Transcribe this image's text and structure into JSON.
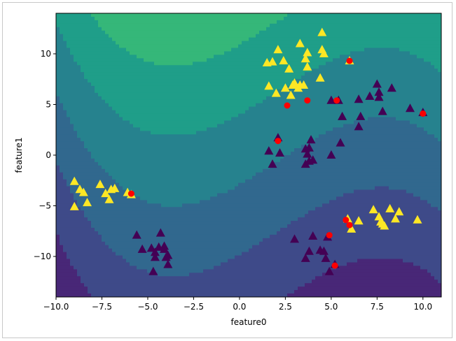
{
  "chart_data": {
    "type": "scatter",
    "title": "",
    "xlabel": "feature0",
    "ylabel": "feature1",
    "xlim": [
      -10.0,
      11.0
    ],
    "ylim": [
      -14.0,
      14.0
    ],
    "xticks": [
      -10.0,
      -7.5,
      -5.0,
      -2.5,
      0.0,
      2.5,
      5.0,
      7.5,
      10.0
    ],
    "xtick_labels": [
      "−10.0",
      "−7.5",
      "−5.0",
      "−2.5",
      "0.0",
      "2.5",
      "5.0",
      "7.5",
      "10.0"
    ],
    "yticks": [
      -10,
      -5,
      0,
      5,
      10
    ],
    "ytick_labels": [
      "−10",
      "−5",
      "0",
      "5",
      "10"
    ],
    "grid": false,
    "background": "decision-function contour (viridis)",
    "colors": {
      "class0": "#440154",
      "class1": "#fde725",
      "support_vector": "#ff0000",
      "contour_levels": [
        "#482777",
        "#3e4a89",
        "#31688e",
        "#26828e",
        "#1f9e89",
        "#35b779",
        "#6ece58",
        "#b5de2b",
        "#fde725"
      ]
    },
    "series": [
      {
        "class": 0,
        "marker": "triangle",
        "points": [
          [
            -5.6,
            -7.9
          ],
          [
            -5.3,
            -9.3
          ],
          [
            -4.8,
            -9.2
          ],
          [
            -4.6,
            -9.6
          ],
          [
            -4.6,
            -10.1
          ],
          [
            -4.3,
            -7.7
          ],
          [
            -4.4,
            -9.1
          ],
          [
            -4.1,
            -9.3
          ],
          [
            -4.0,
            -10.1
          ],
          [
            -3.9,
            -9.9
          ],
          [
            -3.9,
            -10.8
          ],
          [
            -4.7,
            -11.5
          ],
          [
            -4.1,
            -9.0
          ],
          [
            1.6,
            0.4
          ],
          [
            1.8,
            -0.9
          ],
          [
            2.1,
            1.7
          ],
          [
            2.2,
            0.2
          ],
          [
            3.6,
            0.6
          ],
          [
            3.6,
            -0.9
          ],
          [
            3.7,
            0.1
          ],
          [
            3.8,
            0.7
          ],
          [
            3.8,
            -0.6
          ],
          [
            3.9,
            1.5
          ],
          [
            4.0,
            -0.5
          ],
          [
            5.0,
            0.0
          ],
          [
            5.5,
            1.2
          ],
          [
            5.0,
            5.4
          ],
          [
            5.4,
            5.4
          ],
          [
            5.6,
            3.8
          ],
          [
            6.5,
            5.5
          ],
          [
            6.5,
            2.8
          ],
          [
            6.6,
            3.8
          ],
          [
            7.1,
            5.8
          ],
          [
            7.5,
            7.0
          ],
          [
            7.6,
            6.2
          ],
          [
            7.6,
            5.7
          ],
          [
            7.8,
            4.3
          ],
          [
            8.3,
            6.6
          ],
          [
            9.3,
            4.6
          ],
          [
            10.0,
            4.2
          ],
          [
            3.0,
            -8.3
          ],
          [
            3.6,
            -10.2
          ],
          [
            3.8,
            -9.5
          ],
          [
            4.0,
            -8.0
          ],
          [
            4.4,
            -9.4
          ],
          [
            4.6,
            -9.5
          ],
          [
            4.7,
            -10.2
          ],
          [
            4.8,
            -8.1
          ],
          [
            4.9,
            -11.5
          ],
          [
            5.2,
            -10.8
          ]
        ]
      },
      {
        "class": 1,
        "marker": "triangle",
        "points": [
          [
            -9.0,
            -2.6
          ],
          [
            -8.7,
            -3.4
          ],
          [
            -8.5,
            -3.7
          ],
          [
            -9.0,
            -5.1
          ],
          [
            -8.3,
            -4.7
          ],
          [
            -7.6,
            -2.9
          ],
          [
            -7.3,
            -3.8
          ],
          [
            -7.1,
            -4.4
          ],
          [
            -7.0,
            -3.4
          ],
          [
            -6.8,
            -3.3
          ],
          [
            -6.1,
            -3.7
          ],
          [
            -5.9,
            -3.9
          ],
          [
            1.5,
            9.1
          ],
          [
            1.6,
            6.8
          ],
          [
            1.8,
            9.2
          ],
          [
            2.0,
            6.1
          ],
          [
            2.1,
            10.4
          ],
          [
            2.4,
            9.3
          ],
          [
            2.5,
            6.6
          ],
          [
            2.7,
            8.5
          ],
          [
            2.8,
            5.9
          ],
          [
            2.9,
            6.9
          ],
          [
            3.0,
            7.1
          ],
          [
            3.2,
            6.6
          ],
          [
            3.3,
            11.0
          ],
          [
            3.3,
            6.9
          ],
          [
            3.5,
            6.9
          ],
          [
            3.6,
            9.5
          ],
          [
            3.7,
            8.7
          ],
          [
            3.7,
            10.1
          ],
          [
            4.4,
            7.6
          ],
          [
            4.5,
            10.4
          ],
          [
            4.5,
            12.1
          ],
          [
            4.6,
            10.0
          ],
          [
            6.0,
            9.3
          ],
          [
            5.9,
            -6.3
          ],
          [
            6.1,
            -7.3
          ],
          [
            6.5,
            -6.5
          ],
          [
            7.3,
            -5.4
          ],
          [
            7.6,
            -6.1
          ],
          [
            7.7,
            -6.6
          ],
          [
            7.8,
            -6.8
          ],
          [
            7.9,
            -7.0
          ],
          [
            8.2,
            -5.3
          ],
          [
            8.5,
            -6.3
          ],
          [
            8.7,
            -5.6
          ],
          [
            9.7,
            -6.4
          ]
        ]
      }
    ],
    "support_vectors": [
      [
        -5.9,
        -3.8
      ],
      [
        2.1,
        1.4
      ],
      [
        2.6,
        4.9
      ],
      [
        3.7,
        5.4
      ],
      [
        5.3,
        5.4
      ],
      [
        6.0,
        9.3
      ],
      [
        10.0,
        4.1
      ],
      [
        4.9,
        -7.9
      ],
      [
        5.2,
        -10.9
      ],
      [
        5.8,
        -6.4
      ],
      [
        6.0,
        -6.9
      ]
    ]
  }
}
